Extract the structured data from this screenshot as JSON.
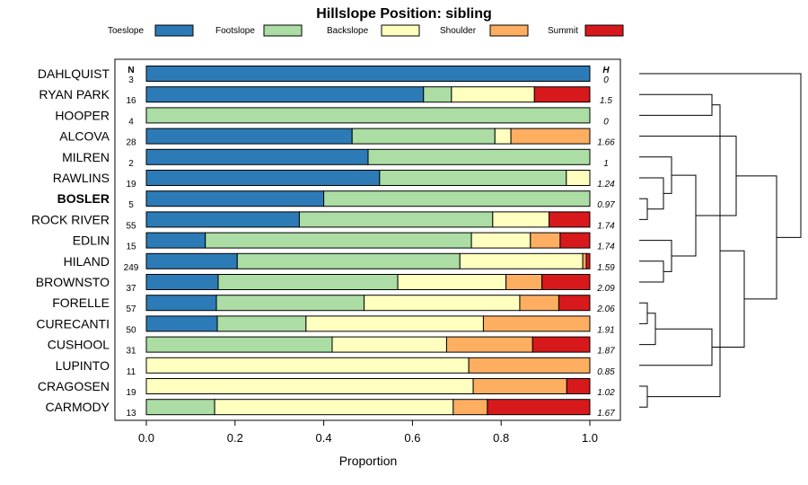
{
  "chart_data": {
    "type": "bar",
    "stacked": true,
    "orientation": "horizontal",
    "title": "Hillslope Position: sibling",
    "xlabel": "Proportion",
    "ylabel": "",
    "xlim": [
      0,
      1
    ],
    "x_ticks": [
      "0.0",
      "0.2",
      "0.4",
      "0.6",
      "0.8",
      "1.0"
    ],
    "n_header": "N",
    "h_header": "H",
    "highlight": "BOSLER",
    "legend": [
      {
        "name": "Toeslope",
        "color": "#2c7bb6"
      },
      {
        "name": "Footslope",
        "color": "#abdda4"
      },
      {
        "name": "Backslope",
        "color": "#ffffbf"
      },
      {
        "name": "Shoulder",
        "color": "#fdae61"
      },
      {
        "name": "Summit",
        "color": "#d7191c"
      }
    ],
    "categories": [
      "DAHLQUIST",
      "RYAN PARK",
      "HOOPER",
      "ALCOVA",
      "MILREN",
      "RAWLINS",
      "BOSLER",
      "ROCK RIVER",
      "EDLIN",
      "HILAND",
      "BROWNSTO",
      "FORELLE",
      "CURECANTI",
      "CUSHOOL",
      "LUPINTO",
      "CRAGOSEN",
      "CARMODY"
    ],
    "n": [
      "3",
      "16",
      "4",
      "28",
      "2",
      "19",
      "5",
      "55",
      "15",
      "249",
      "37",
      "57",
      "50",
      "31",
      "11",
      "19",
      "13"
    ],
    "h": [
      "0",
      "1.5",
      "0",
      "1.66",
      "1",
      "1.24",
      "0.97",
      "1.74",
      "1.74",
      "1.59",
      "2.09",
      "2.06",
      "1.91",
      "1.87",
      "0.85",
      "1.02",
      "1.67"
    ],
    "series": [
      {
        "name": "Toeslope",
        "values": [
          1.0,
          0.625,
          0.0,
          0.464,
          0.5,
          0.526,
          0.4,
          0.345,
          0.133,
          0.205,
          0.162,
          0.158,
          0.16,
          0.0,
          0.0,
          0.0,
          0.0
        ]
      },
      {
        "name": "Footslope",
        "values": [
          0.0,
          0.063,
          1.0,
          0.322,
          0.5,
          0.421,
          0.6,
          0.436,
          0.6,
          0.502,
          0.405,
          0.333,
          0.2,
          0.419,
          0.0,
          0.0,
          0.154
        ]
      },
      {
        "name": "Backslope",
        "values": [
          0.0,
          0.187,
          0.0,
          0.036,
          0.0,
          0.053,
          0.0,
          0.127,
          0.133,
          0.277,
          0.244,
          0.351,
          0.4,
          0.258,
          0.727,
          0.737,
          0.538
        ]
      },
      {
        "name": "Shoulder",
        "values": [
          0.0,
          0.0,
          0.0,
          0.178,
          0.0,
          0.0,
          0.0,
          0.0,
          0.067,
          0.008,
          0.081,
          0.088,
          0.24,
          0.194,
          0.273,
          0.211,
          0.077
        ]
      },
      {
        "name": "Summit",
        "values": [
          0.0,
          0.125,
          0.0,
          0.0,
          0.0,
          0.0,
          0.0,
          0.092,
          0.067,
          0.008,
          0.108,
          0.07,
          0.0,
          0.129,
          0.0,
          0.052,
          0.231
        ]
      }
    ],
    "dendrogram": {
      "leaf_order": [
        "DAHLQUIST",
        "RYAN PARK",
        "HOOPER",
        "ALCOVA",
        "MILREN",
        "RAWLINS",
        "BOSLER",
        "ROCK RIVER",
        "EDLIN",
        "HILAND",
        "BROWNSTO",
        "FORELLE",
        "CURECANTI",
        "CUSHOOL",
        "LUPINTO",
        "CRAGOSEN",
        "CARMODY"
      ],
      "merges": [
        [
          1,
          2,
          0.45
        ],
        [
          6,
          7,
          0.05
        ],
        [
          5,
          18,
          0.15
        ],
        [
          4,
          19,
          0.2
        ],
        [
          9,
          10,
          0.15
        ],
        [
          8,
          21,
          0.2
        ],
        [
          20,
          22,
          0.35
        ],
        [
          3,
          23,
          0.6
        ],
        [
          11,
          12,
          0.05
        ],
        [
          13,
          25,
          0.1
        ],
        [
          14,
          26,
          0.45
        ],
        [
          15,
          16,
          0.05
        ],
        [
          28,
          17,
          0.5
        ],
        [
          27,
          29,
          0.65
        ],
        [
          24,
          30,
          0.85
        ],
        [
          -1,
          31,
          1.0
        ]
      ]
    }
  }
}
